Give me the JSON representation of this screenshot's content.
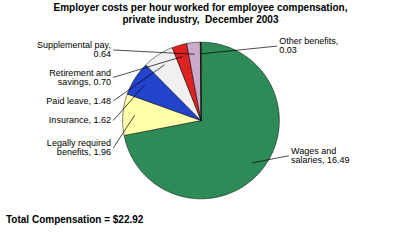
{
  "chart_data": {
    "type": "pie",
    "title": "Employer costs per hour worked for employee compensation,\nprivate industry,  December 2003",
    "categories": [
      "Wages and\nsalaries, 16.49",
      "Legally required\nbenefits, 1.96",
      "Insurance, 1.62",
      "Paid leave, 1.48",
      "Retirement and\nsavings, 0.70",
      "Supplemental pay,\n0.64",
      "Other benefits,\n0.03"
    ],
    "values": [
      16.49,
      1.96,
      1.62,
      1.48,
      0.7,
      0.64,
      0.03
    ],
    "colors": [
      "#2e8b57",
      "#ffffaa",
      "#2244cc",
      "#f0f0f0",
      "#dd2222",
      "#ccaacc",
      "#6b1a1a"
    ],
    "annotations": [
      "Total Compensation = $22.92"
    ]
  }
}
